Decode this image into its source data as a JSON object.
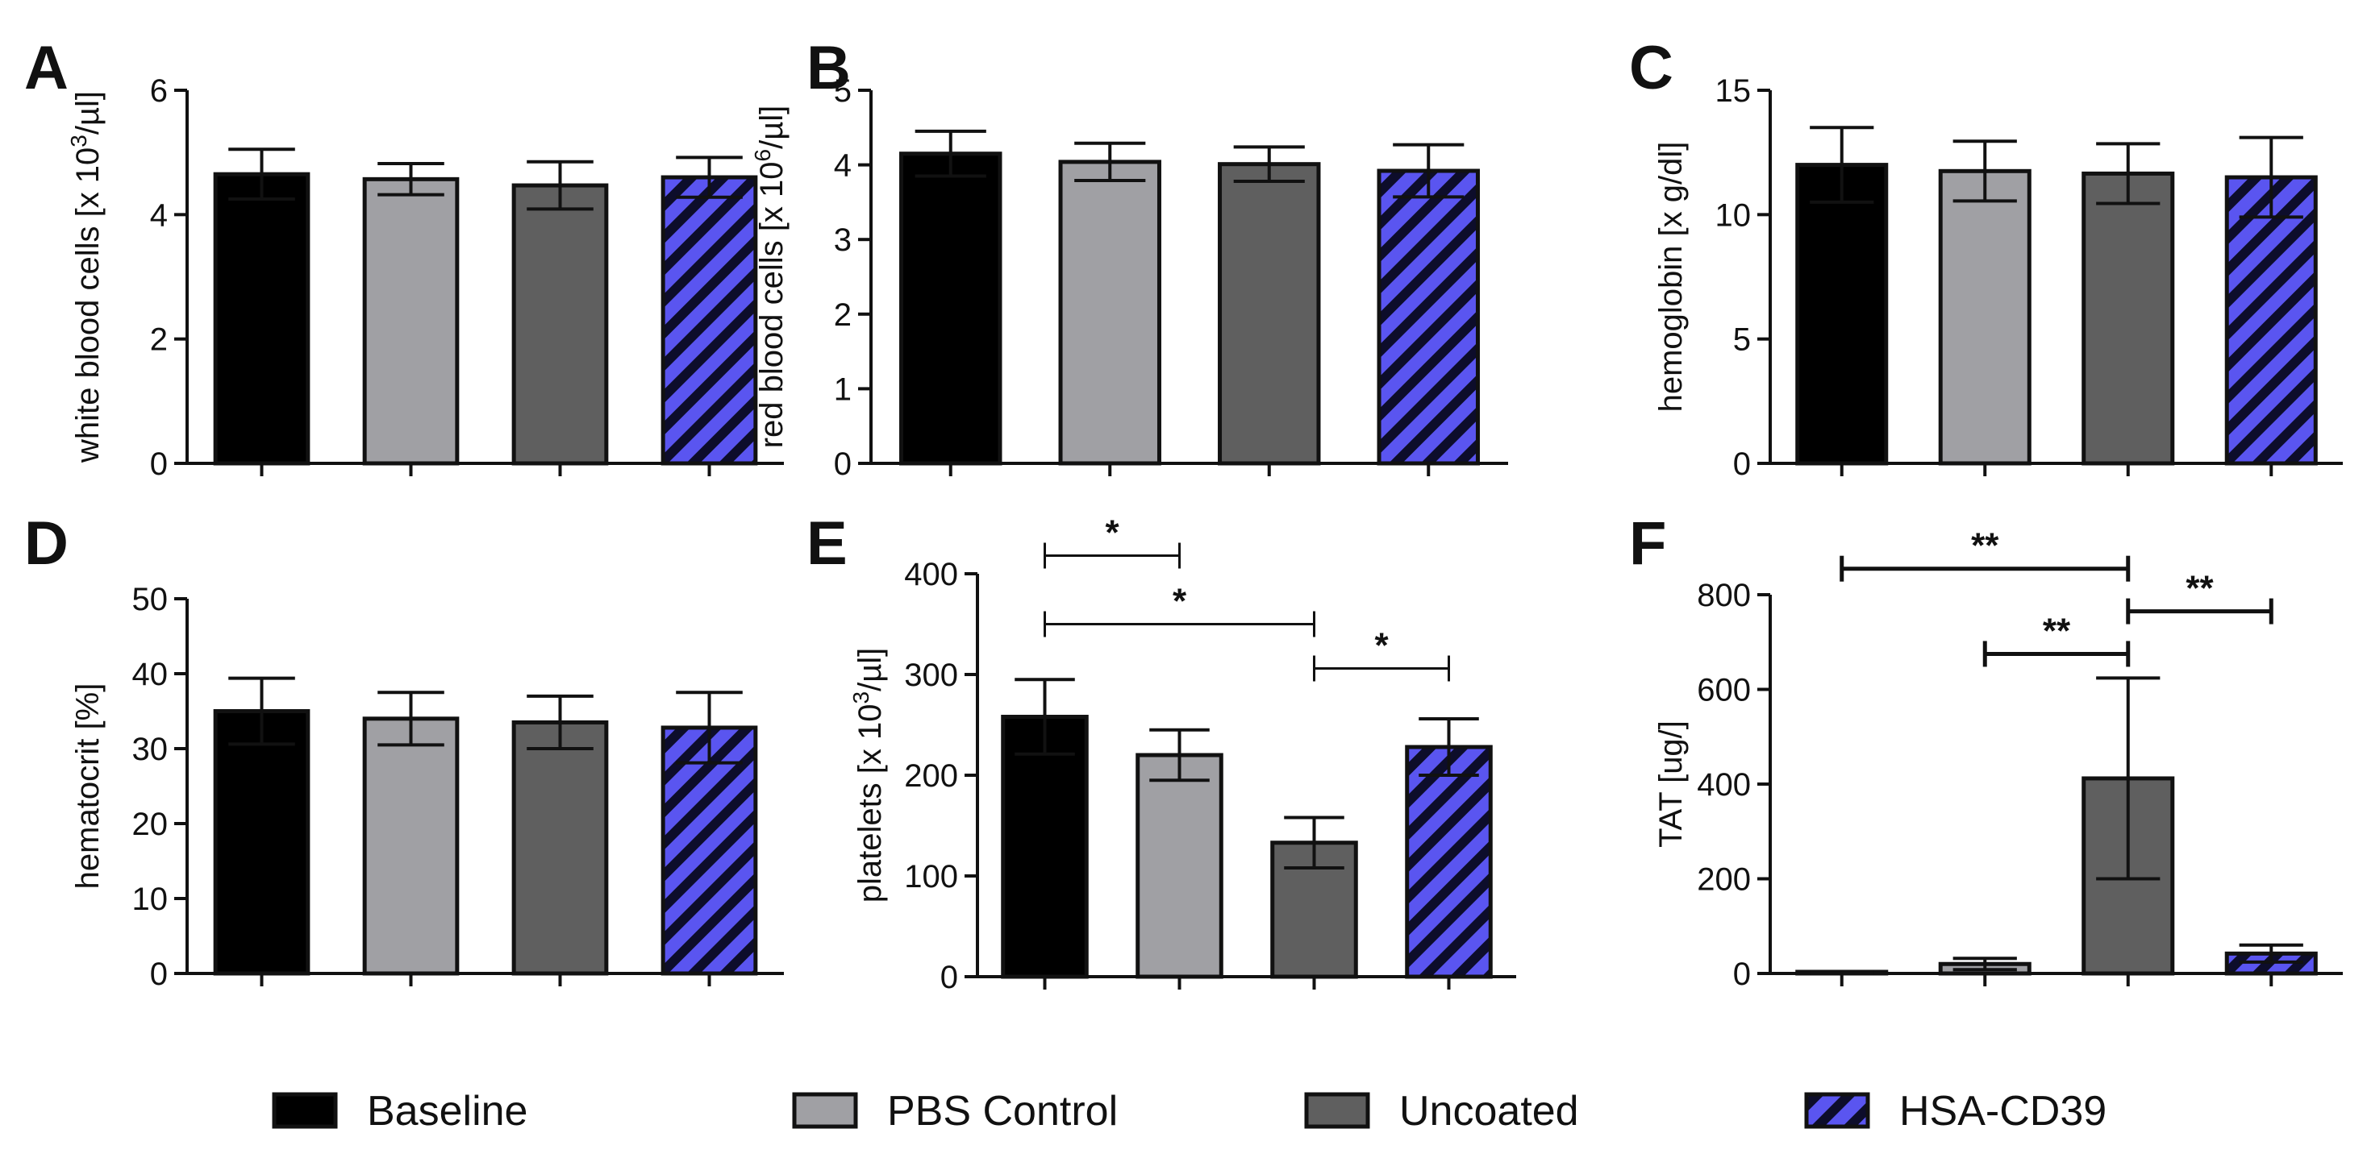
{
  "colors": {
    "baseline": "#000000",
    "pbs_control": "#a0a0a4",
    "uncoated": "#5f5f5f",
    "hsa_cd39_fill": "#5a55f0",
    "hsa_cd39_stripe": "#0d0d2b",
    "axis": "#111111"
  },
  "legend": [
    {
      "key": "baseline",
      "label": "Baseline"
    },
    {
      "key": "pbs_control",
      "label": "PBS Control"
    },
    {
      "key": "uncoated",
      "label": "Uncoated"
    },
    {
      "key": "hsa_cd39",
      "label": "HSA-CD39"
    }
  ],
  "chart_data": [
    {
      "panel": "A",
      "type": "bar",
      "ylabel_main": "white blood cells [x 10",
      "ylabel_sup": "3",
      "ylabel_tail": "/µl]",
      "ylim": [
        0,
        6
      ],
      "yticks": [
        0,
        2,
        4,
        6
      ],
      "categories": [
        "Baseline",
        "PBS Control",
        "Uncoated",
        "HSA-CD39"
      ],
      "values": [
        4.65,
        4.57,
        4.47,
        4.6
      ],
      "errors": [
        0.4,
        0.25,
        0.38,
        0.32
      ],
      "significance": []
    },
    {
      "panel": "B",
      "type": "bar",
      "ylabel_main": "red blood cells [x 10",
      "ylabel_sup": "6",
      "ylabel_tail": "/µl]",
      "ylim": [
        0,
        5
      ],
      "yticks": [
        0,
        1,
        2,
        3,
        4,
        5
      ],
      "categories": [
        "Baseline",
        "PBS Control",
        "Uncoated",
        "HSA-CD39"
      ],
      "values": [
        4.15,
        4.04,
        4.01,
        3.92
      ],
      "errors": [
        0.3,
        0.25,
        0.23,
        0.35
      ],
      "significance": []
    },
    {
      "panel": "C",
      "type": "bar",
      "ylabel_main": "hemoglobin [x g/dl]",
      "ylabel_sup": "",
      "ylabel_tail": "",
      "ylim": [
        0,
        15
      ],
      "yticks": [
        0,
        5,
        10,
        15
      ],
      "categories": [
        "Baseline",
        "PBS Control",
        "Uncoated",
        "HSA-CD39"
      ],
      "values": [
        12.0,
        11.75,
        11.65,
        11.5
      ],
      "errors": [
        1.5,
        1.2,
        1.2,
        1.6
      ],
      "significance": []
    },
    {
      "panel": "D",
      "type": "bar",
      "ylabel_main": "hematocrit [%]",
      "ylabel_sup": "",
      "ylabel_tail": "",
      "ylim": [
        0,
        50
      ],
      "yticks": [
        0,
        10,
        20,
        30,
        40,
        50
      ],
      "categories": [
        "Baseline",
        "PBS Control",
        "Uncoated",
        "HSA-CD39"
      ],
      "values": [
        35.0,
        34.0,
        33.5,
        32.8
      ],
      "errors": [
        4.4,
        3.5,
        3.5,
        4.7
      ],
      "significance": []
    },
    {
      "panel": "E",
      "type": "bar",
      "ylabel_main": "platelets [x 10",
      "ylabel_sup": "3",
      "ylabel_tail": "/µl]",
      "ylim": [
        0,
        400
      ],
      "yticks": [
        0,
        100,
        200,
        300,
        400
      ],
      "categories": [
        "Baseline",
        "PBS Control",
        "Uncoated",
        "HSA-CD39"
      ],
      "values": [
        258,
        220,
        133,
        228
      ],
      "errors": [
        37,
        25,
        25,
        28
      ],
      "significance": [
        {
          "from": 0,
          "to": 1,
          "label": "*",
          "y": 418
        },
        {
          "from": 0,
          "to": 2,
          "label": "*",
          "y": 350
        },
        {
          "from": 2,
          "to": 3,
          "label": "*",
          "y": 306
        }
      ]
    },
    {
      "panel": "F",
      "type": "bar",
      "ylabel_main": "TAT [ug/]",
      "ylabel_sup": "",
      "ylabel_tail": "",
      "ylim": [
        0,
        800
      ],
      "yticks": [
        0,
        200,
        400,
        600,
        800
      ],
      "categories": [
        "Baseline",
        "PBS Control",
        "Uncoated",
        "HSA-CD39"
      ],
      "values": [
        2,
        20,
        412,
        42
      ],
      "errors": [
        2,
        12,
        212,
        18
      ],
      "significance": [
        {
          "from": 0,
          "to": 2,
          "label": "**",
          "y": 855
        },
        {
          "from": 2,
          "to": 3,
          "label": "**",
          "y": 765
        },
        {
          "from": 1,
          "to": 2,
          "label": "**",
          "y": 675
        }
      ]
    }
  ]
}
